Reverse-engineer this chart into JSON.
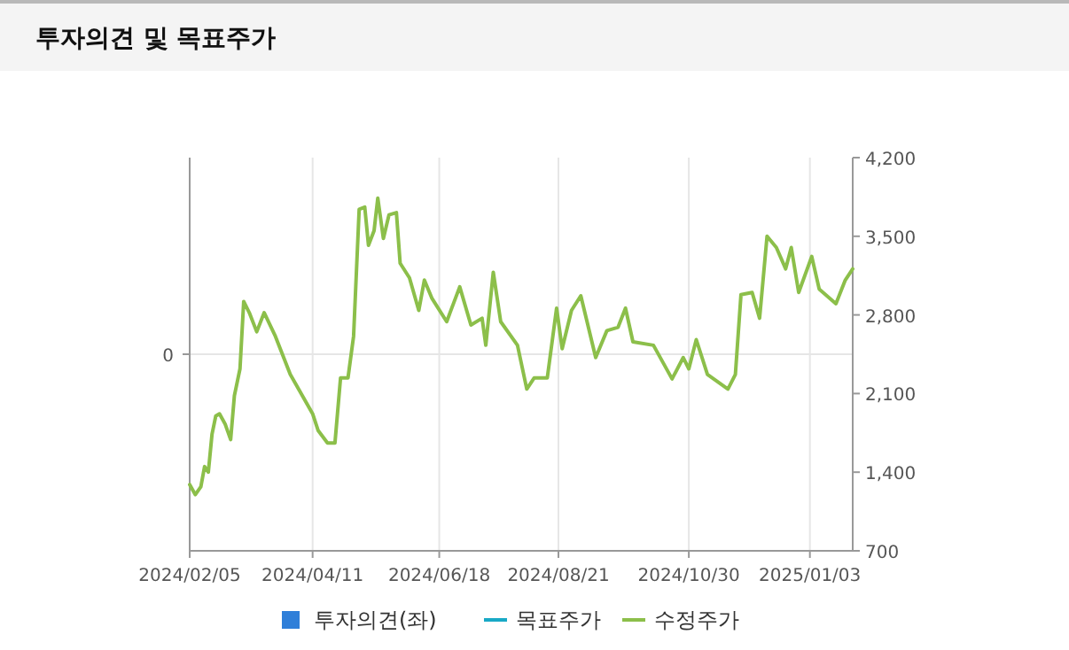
{
  "chart_data": {
    "type": "line",
    "title": "투자의견 및 목표주가",
    "xlim": [
      "2024-02-05",
      "2025-01-26"
    ],
    "xticks": [
      {
        "value": "2024-02-05",
        "label": "2024/02/05"
      },
      {
        "value": "2024-04-11",
        "label": "2024/04/11"
      },
      {
        "value": "2024-06-18",
        "label": "2024/06/18"
      },
      {
        "value": "2024-08-21",
        "label": "2024/08/21"
      },
      {
        "value": "2024-10-30",
        "label": "2024/10/30"
      },
      {
        "value": "2025-01-03",
        "label": "2025/01/03"
      }
    ],
    "annotations": [
      "0"
    ],
    "y2lim": [
      700,
      4200
    ],
    "y2ticks": [
      {
        "value": 700,
        "label": "700"
      },
      {
        "value": 1400,
        "label": "1,400"
      },
      {
        "value": 2100,
        "label": "2,100"
      },
      {
        "value": 2800,
        "label": "2,800"
      },
      {
        "value": 3500,
        "label": "3,500"
      },
      {
        "value": 4200,
        "label": "4,200"
      }
    ],
    "grid": "x",
    "legend": "bottom",
    "series": [
      {
        "name": "투자의견(좌)",
        "type": "bar",
        "color": "#2f7fd9"
      },
      {
        "name": "목표주가",
        "color": "#19a9c6"
      },
      {
        "name": "수정주가",
        "color": "#8cbf4a",
        "axis": "y2",
        "x": [
          "2024-02-05",
          "2024-02-08",
          "2024-02-11",
          "2024-02-13",
          "2024-02-15",
          "2024-02-17",
          "2024-02-19",
          "2024-02-21",
          "2024-02-24",
          "2024-02-27",
          "2024-02-29",
          "2024-03-03",
          "2024-03-05",
          "2024-03-08",
          "2024-03-12",
          "2024-03-16",
          "2024-03-22",
          "2024-03-30",
          "2024-04-11",
          "2024-04-14",
          "2024-04-19",
          "2024-04-23",
          "2024-04-26",
          "2024-04-30",
          "2024-05-03",
          "2024-05-06",
          "2024-05-09",
          "2024-05-11",
          "2024-05-14",
          "2024-05-16",
          "2024-05-19",
          "2024-05-22",
          "2024-05-26",
          "2024-05-28",
          "2024-06-02",
          "2024-06-07",
          "2024-06-10",
          "2024-06-14",
          "2024-06-22",
          "2024-06-29",
          "2024-07-05",
          "2024-07-11",
          "2024-07-13",
          "2024-07-17",
          "2024-07-21",
          "2024-07-30",
          "2024-08-04",
          "2024-08-08",
          "2024-08-15",
          "2024-08-20",
          "2024-08-23",
          "2024-08-28",
          "2024-09-02",
          "2024-09-10",
          "2024-09-16",
          "2024-09-22",
          "2024-09-26",
          "2024-09-30",
          "2024-10-11",
          "2024-10-21",
          "2024-10-27",
          "2024-10-30",
          "2024-11-03",
          "2024-11-09",
          "2024-11-14",
          "2024-11-20",
          "2024-11-24",
          "2024-11-27",
          "2024-12-03",
          "2024-12-07",
          "2024-12-11",
          "2024-12-16",
          "2024-12-21",
          "2024-12-24",
          "2024-12-28",
          "2025-01-04",
          "2025-01-08",
          "2025-01-17",
          "2025-01-22",
          "2025-01-26"
        ],
        "values": [
          1290,
          1200,
          1270,
          1450,
          1400,
          1740,
          1900,
          1920,
          1830,
          1690,
          2080,
          2320,
          2920,
          2820,
          2650,
          2820,
          2610,
          2270,
          1920,
          1770,
          1660,
          1660,
          2240,
          2240,
          2610,
          3740,
          3760,
          3420,
          3550,
          3840,
          3480,
          3690,
          3710,
          3260,
          3130,
          2840,
          3110,
          2950,
          2740,
          3050,
          2710,
          2770,
          2530,
          3180,
          2740,
          2530,
          2140,
          2240,
          2240,
          2860,
          2500,
          2840,
          2970,
          2420,
          2660,
          2690,
          2860,
          2560,
          2530,
          2230,
          2420,
          2320,
          2580,
          2270,
          2210,
          2140,
          2270,
          2980,
          3000,
          2770,
          3500,
          3400,
          3210,
          3400,
          3000,
          3320,
          3030,
          2900,
          3110,
          3210
        ]
      }
    ]
  }
}
